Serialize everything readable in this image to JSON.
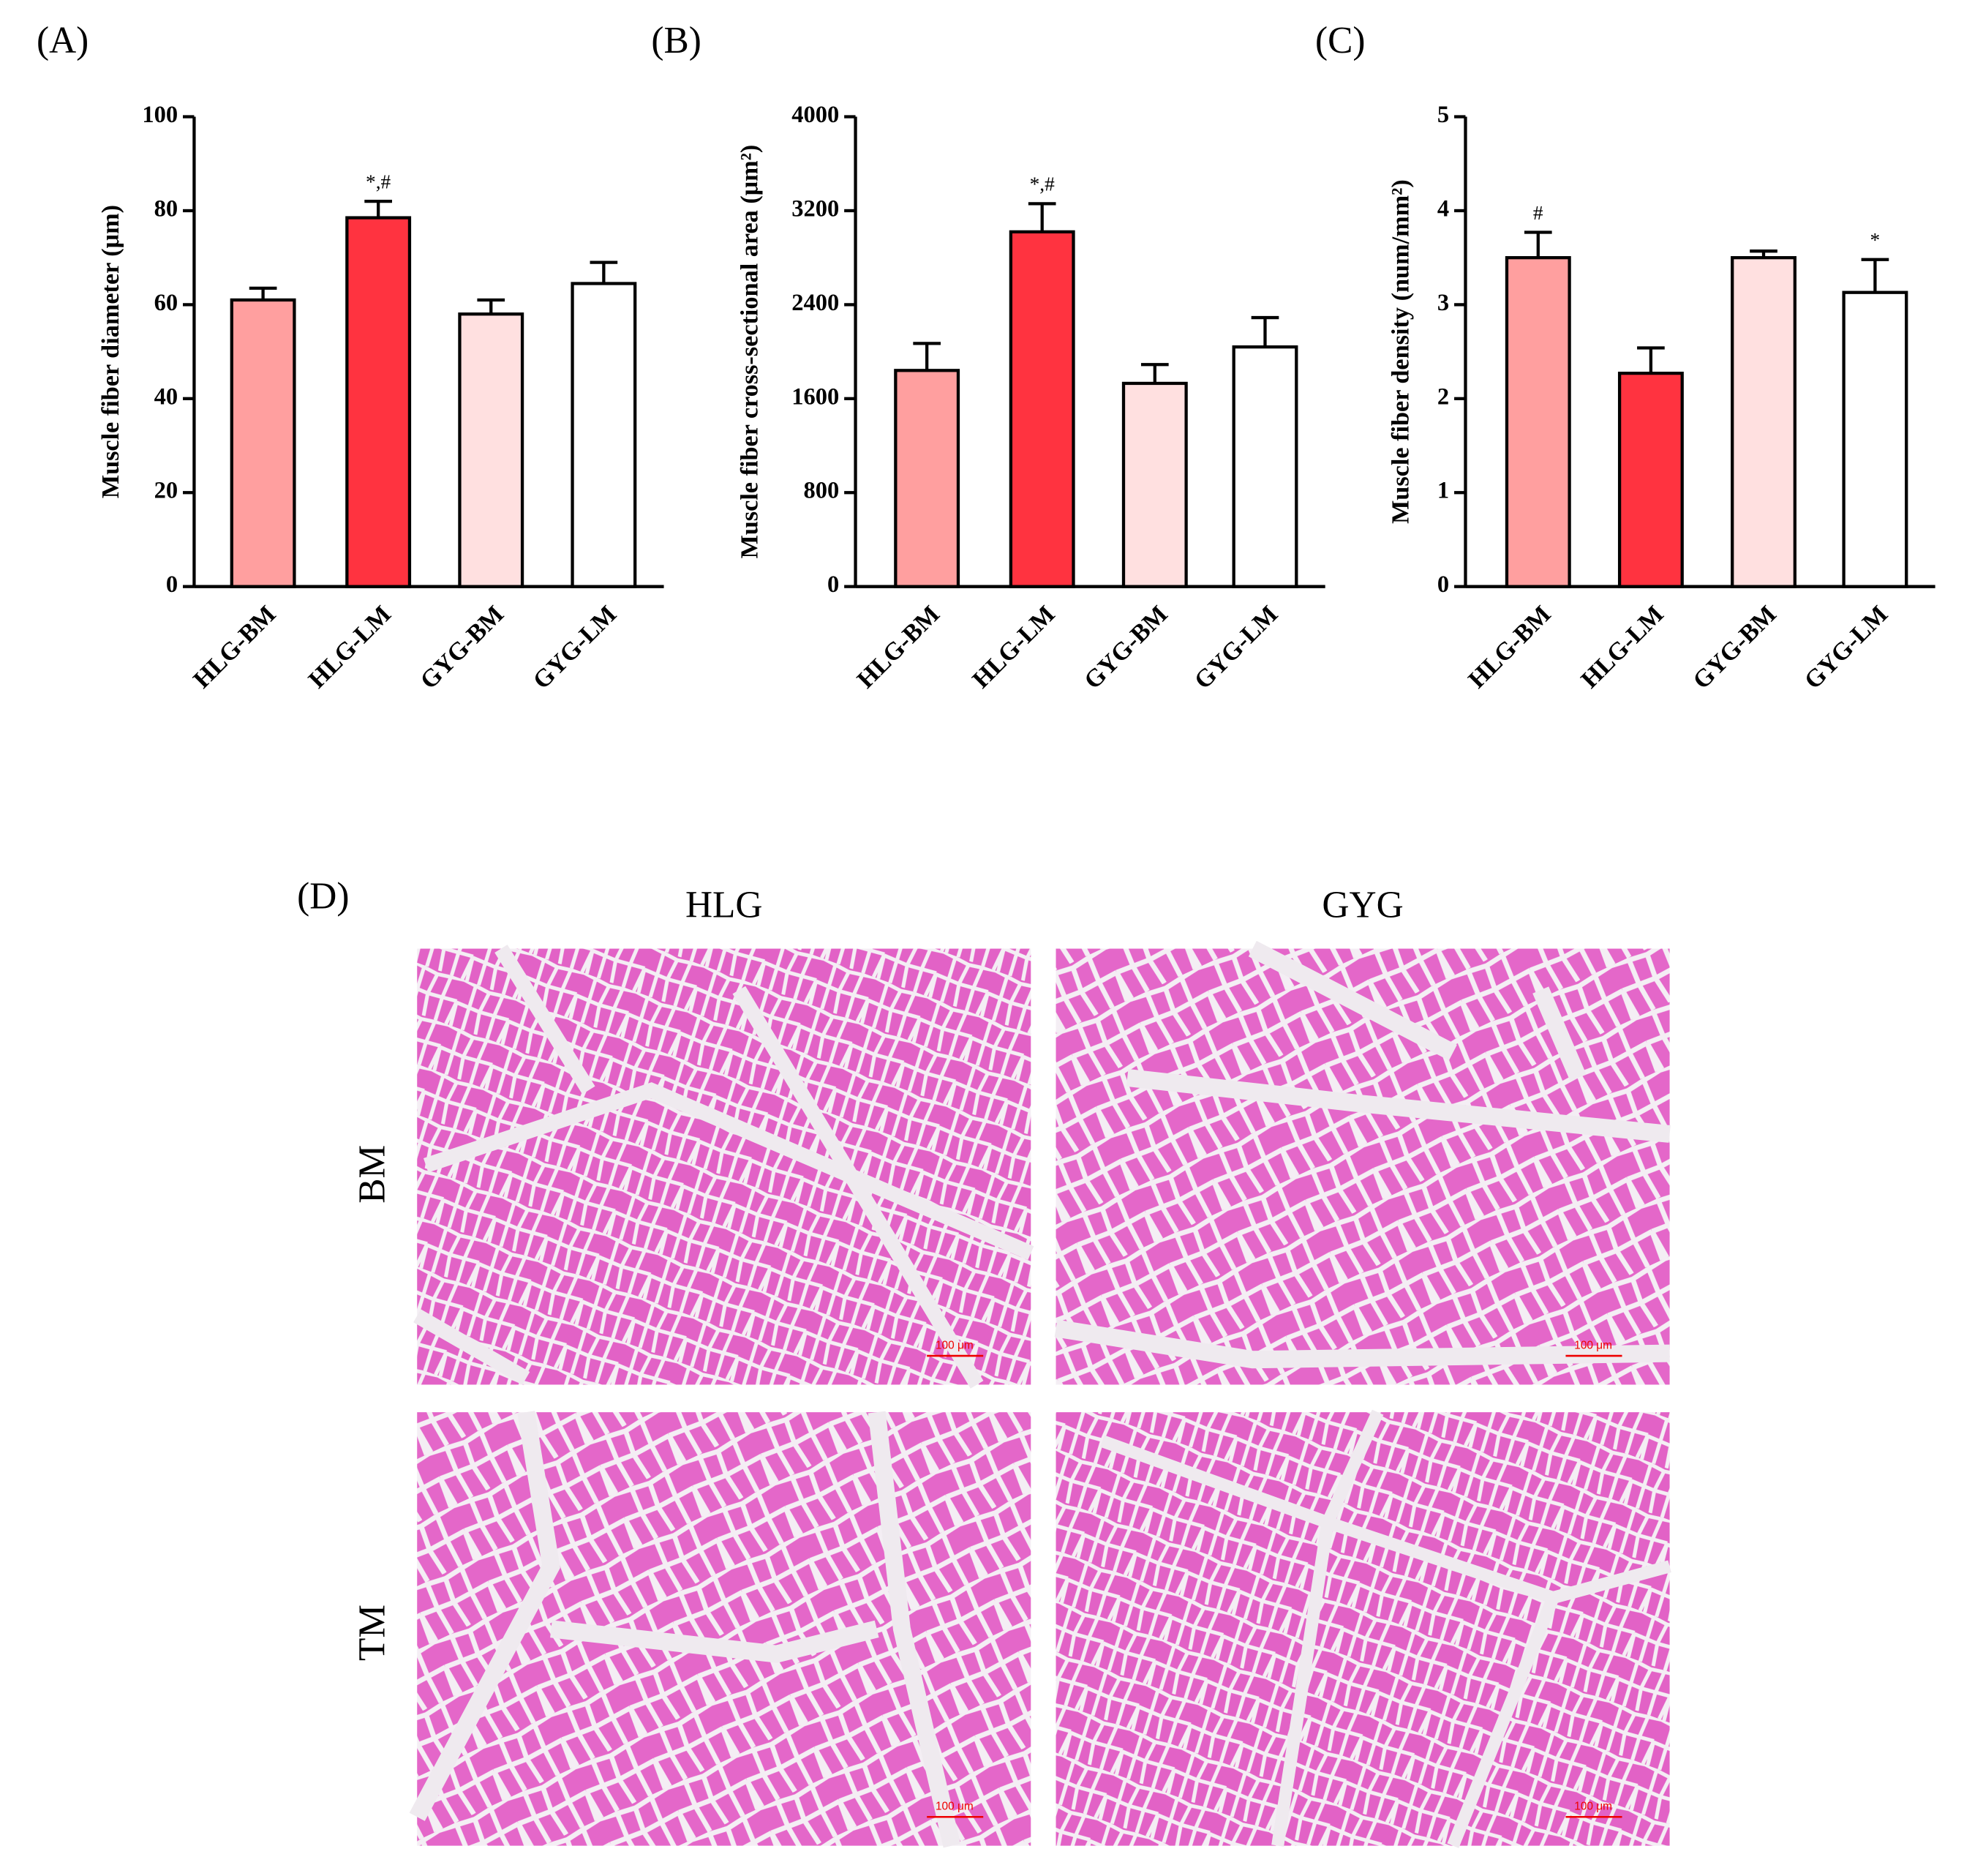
{
  "chart_data": [
    {
      "type": "bar",
      "panel_label": "(A)",
      "ylabel": "Muscle fiber diameter (μm)",
      "categories": [
        "HLG-BM",
        "HLG-LM",
        "GYG-BM",
        "GYG-LM"
      ],
      "values": [
        61,
        78.5,
        58,
        64.5
      ],
      "errors": [
        2.5,
        3.5,
        3,
        4.5
      ],
      "annotations": [
        null,
        "*,#",
        null,
        null
      ],
      "colors": [
        "#ff9f9f",
        "#ff3340",
        "#ffe0e0",
        "#ffffff"
      ],
      "ylim": [
        0,
        100
      ],
      "yticks": [
        0,
        20,
        40,
        60,
        80,
        100
      ]
    },
    {
      "type": "bar",
      "panel_label": "(B)",
      "ylabel": "Muscle fiber cross-sectional area (μm²)",
      "categories": [
        "HLG-BM",
        "HLG-LM",
        "GYG-BM",
        "GYG-LM"
      ],
      "values": [
        1840,
        3020,
        1730,
        2040
      ],
      "errors": [
        230,
        240,
        160,
        250
      ],
      "annotations": [
        null,
        "*,#",
        null,
        null
      ],
      "colors": [
        "#ff9f9f",
        "#ff3340",
        "#ffe0e0",
        "#ffffff"
      ],
      "ylim": [
        0,
        4000
      ],
      "yticks": [
        0,
        800,
        1600,
        2400,
        3200,
        4000
      ]
    },
    {
      "type": "bar",
      "panel_label": "(C)",
      "ylabel": "Muscle fiber density (num/mm²)",
      "categories": [
        "HLG-BM",
        "HLG-LM",
        "GYG-BM",
        "GYG-LM"
      ],
      "values": [
        3.5,
        2.27,
        3.5,
        3.13
      ],
      "errors": [
        0.27,
        0.27,
        0.07,
        0.35
      ],
      "annotations": [
        "#",
        null,
        null,
        "*"
      ],
      "colors": [
        "#ff9f9f",
        "#ff3340",
        "#ffe0e0",
        "#ffffff"
      ],
      "ylim": [
        0,
        5
      ],
      "yticks": [
        0,
        1,
        2,
        3,
        4,
        5
      ]
    }
  ],
  "panel_d": {
    "panel_label": "(D)",
    "columns": [
      "HLG",
      "GYG"
    ],
    "rows": [
      "BM",
      "TM"
    ],
    "scale_bars": [
      "100 μm",
      "100 μm",
      "100 μm",
      "100 μm"
    ]
  }
}
